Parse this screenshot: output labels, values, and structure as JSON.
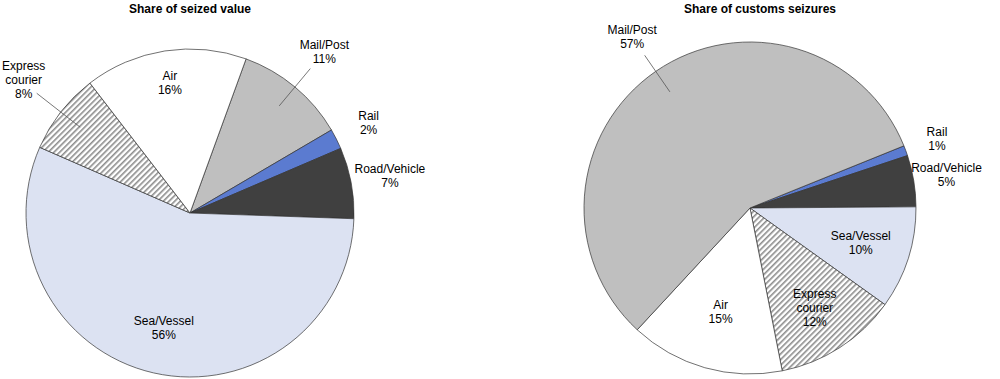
{
  "chart_data": [
    {
      "type": "pie",
      "title": "Share of seized value",
      "categories": [
        "Mail/Post",
        "Rail",
        "Road/Vehicle",
        "Sea/Vessel",
        "Express courier",
        "Air"
      ],
      "values": [
        11,
        2,
        7,
        56,
        8,
        16
      ],
      "value_labels": [
        "11%",
        "2%",
        "7%",
        "56%",
        "8%",
        "16%"
      ],
      "colors": [
        "#bfbfbf",
        "#5b7bd0",
        "#404040",
        "#dce2f2",
        "#8c8c8c",
        "#ffffff"
      ],
      "data_labels": true
    },
    {
      "type": "pie",
      "title": "Share of customs seizures",
      "categories": [
        "Rail",
        "Road/Vehicle",
        "Sea/Vessel",
        "Express courier",
        "Air",
        "Mail/Post"
      ],
      "values": [
        1,
        5,
        10,
        12,
        15,
        57
      ],
      "value_labels": [
        "1%",
        "5%",
        "10%",
        "12%",
        "15%",
        "57%"
      ],
      "colors": [
        "#5b7bd0",
        "#404040",
        "#dce2f2",
        "#8c8c8c",
        "#ffffff",
        "#bfbfbf"
      ],
      "data_labels": true
    }
  ]
}
